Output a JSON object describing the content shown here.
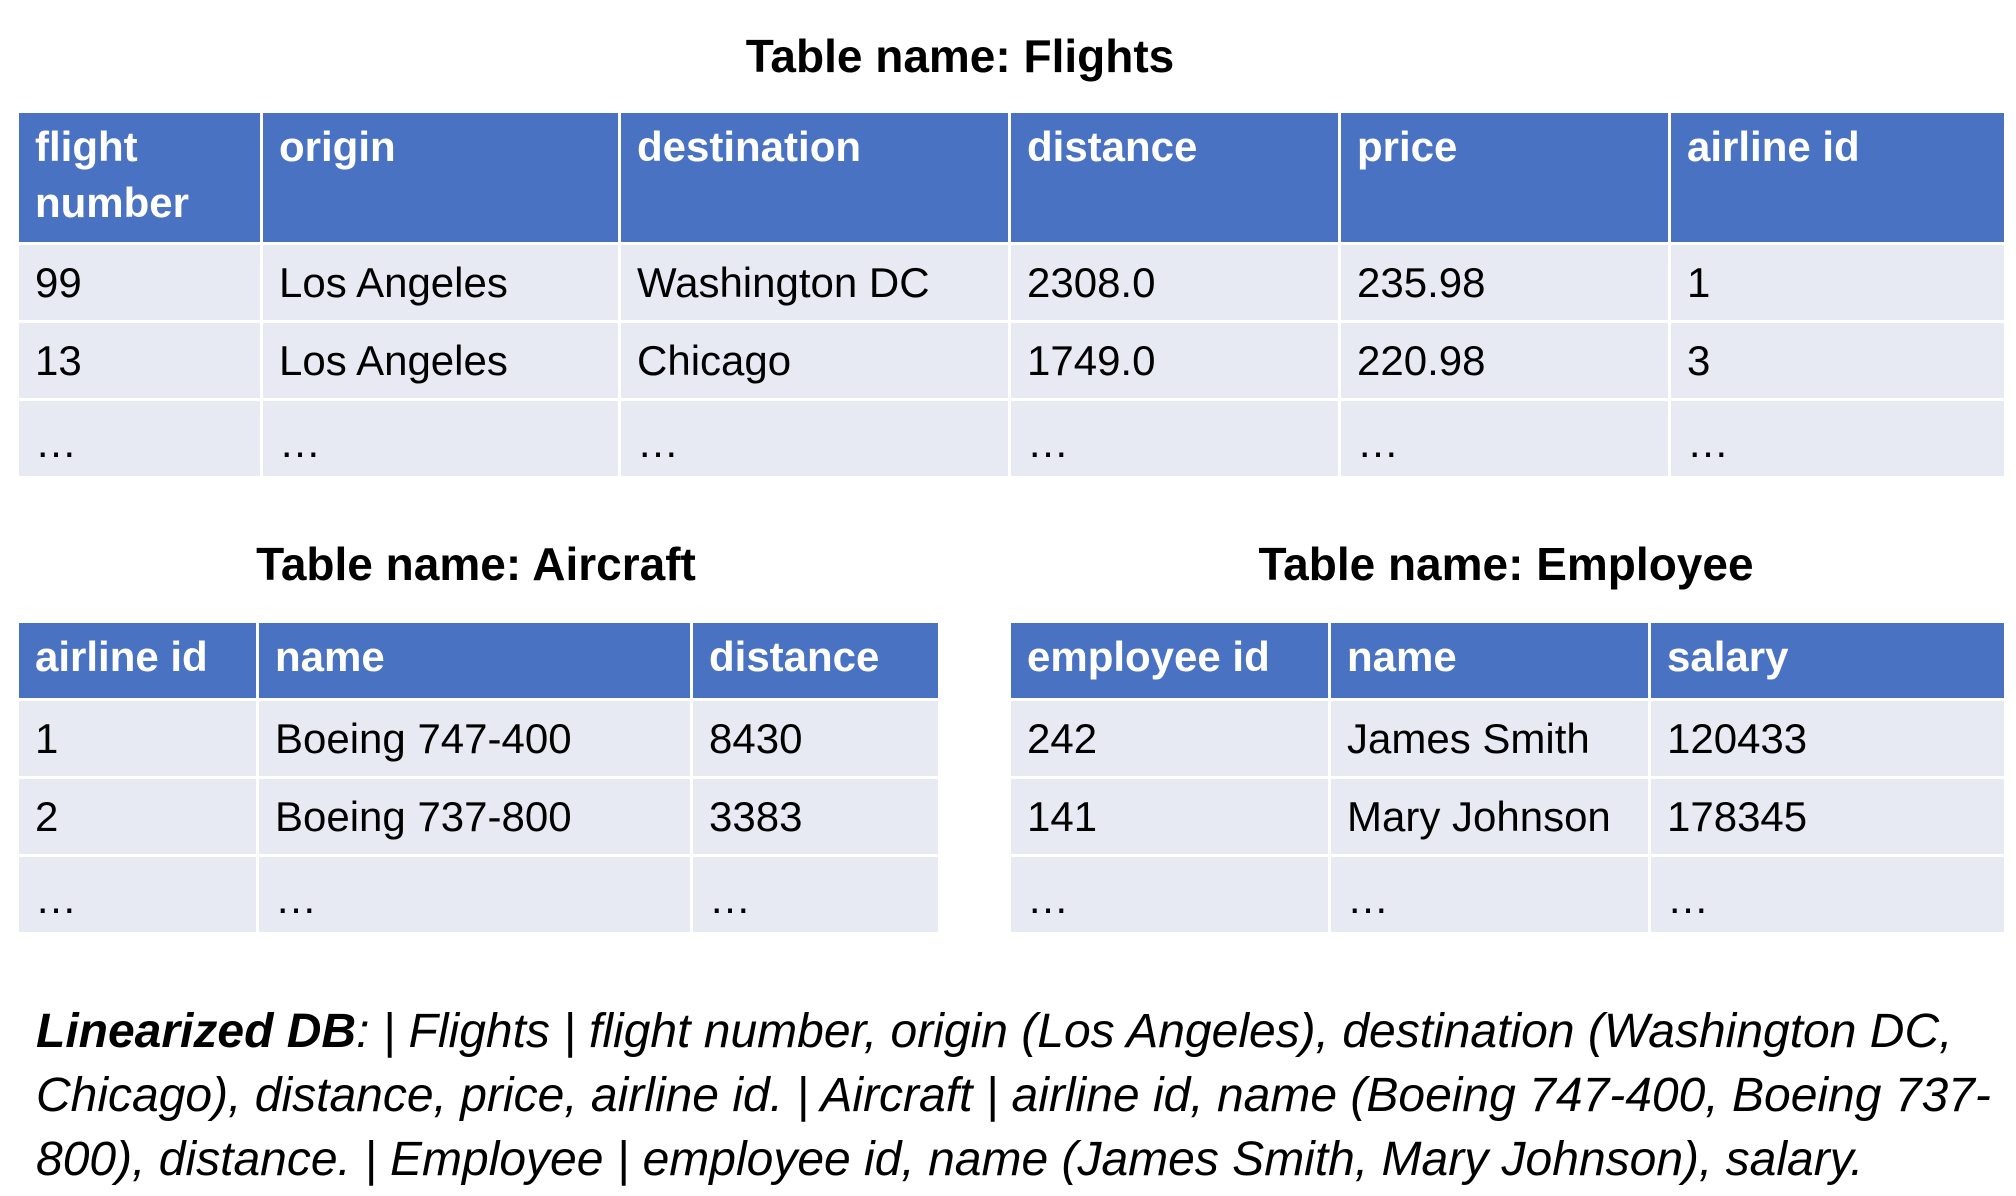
{
  "flights": {
    "title": "Table name: Flights",
    "headers": [
      "flight number",
      "origin",
      "destination",
      "distance",
      "price",
      "airline id"
    ],
    "rows": [
      [
        "99",
        "Los Angeles",
        "Washington DC",
        "2308.0",
        "235.98",
        "1"
      ],
      [
        "13",
        "Los Angeles",
        "Chicago",
        "1749.0",
        "220.98",
        "3"
      ],
      [
        "…",
        "…",
        "…",
        "…",
        "…",
        "…"
      ]
    ]
  },
  "aircraft": {
    "title": "Table name: Aircraft",
    "headers": [
      "airline id",
      "name",
      "distance"
    ],
    "rows": [
      [
        "1",
        "Boeing 747-400",
        "8430"
      ],
      [
        "2",
        "Boeing 737-800",
        "3383"
      ],
      [
        "…",
        "…",
        "…"
      ]
    ]
  },
  "employee": {
    "title": "Table name: Employee",
    "headers": [
      "employee id",
      "name",
      "salary"
    ],
    "rows": [
      [
        "242",
        "James Smith",
        "120433"
      ],
      [
        "141",
        "Mary Johnson",
        "178345"
      ],
      [
        "…",
        "…",
        "…"
      ]
    ]
  },
  "linearized": {
    "label": "Linearized DB",
    "text": ": | Flights | flight number, origin (Los Angeles), destination (Washington DC, Chicago), distance, price, airline id. | Aircraft | airline id, name (Boeing 747-400, Boeing 737-800), distance. | Employee | employee id, name (James Smith, Mary Johnson), salary."
  },
  "colors": {
    "header_bg": "#4a72c2",
    "cell_bg": "#e7e9f3"
  }
}
